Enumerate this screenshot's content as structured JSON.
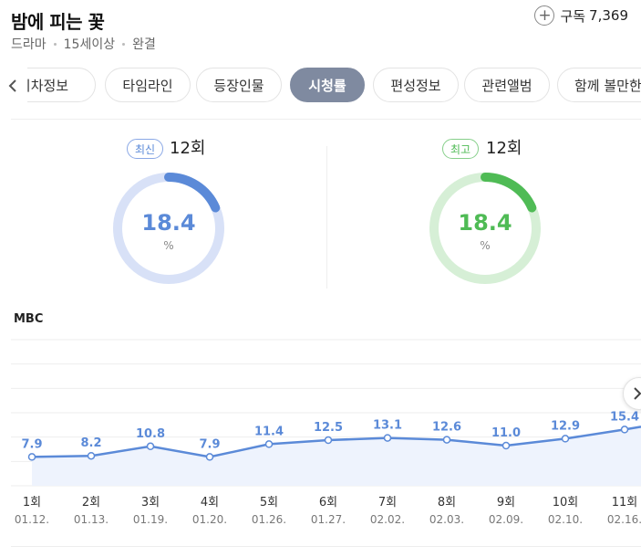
{
  "header": {
    "title": "밤에 피는 꽃",
    "meta": [
      "드라마",
      "15세이상",
      "완결"
    ],
    "subscribe_label": "구독",
    "subscribe_count": "7,369"
  },
  "tabs": [
    {
      "label": "회차정보",
      "active": false
    },
    {
      "label": "타임라인",
      "active": false
    },
    {
      "label": "등장인물",
      "active": false
    },
    {
      "label": "시청률",
      "active": true
    },
    {
      "label": "편성정보",
      "active": false
    },
    {
      "label": "관련앨범",
      "active": false
    },
    {
      "label": "함께 볼만한 작품",
      "active": false
    }
  ],
  "latest": {
    "badge": "최신",
    "episode": "12회",
    "value": "18.4",
    "unit": "%",
    "fraction": 0.184,
    "color": "#5b8ad8",
    "track": "#d8e1f7"
  },
  "best": {
    "badge": "최고",
    "episode": "12회",
    "value": "18.4",
    "unit": "%",
    "fraction": 0.184,
    "color": "#4fbb55",
    "track": "#d6efd6"
  },
  "channel": "MBC",
  "chart_data": {
    "type": "area",
    "series": [
      {
        "values": [
          7.9,
          8.2,
          10.8,
          7.9,
          11.4,
          12.5,
          13.1,
          12.6,
          11.0,
          12.9,
          15.4
        ]
      }
    ],
    "episodes": [
      "1회",
      "2회",
      "3회",
      "4회",
      "5회",
      "6회",
      "7회",
      "8회",
      "9회",
      "10회",
      "11회"
    ],
    "dates": [
      "01.12.",
      "01.13.",
      "01.19.",
      "01.20.",
      "01.26.",
      "01.27.",
      "02.02.",
      "02.03.",
      "02.09.",
      "02.10.",
      "02.16."
    ],
    "value_labels": [
      "7.9",
      "8.2",
      "10.8",
      "7.9",
      "11.4",
      "12.5",
      "13.1",
      "12.6",
      "11.0",
      "12.9",
      "15.4"
    ],
    "ylim": [
      0,
      40
    ],
    "grid": true,
    "line_color": "#5b8ad8",
    "fill_color": "#eef3fd"
  },
  "icons": {
    "prev": "chevron-left-icon",
    "next": "chevron-right-icon",
    "subscribe": "plus-circle-icon"
  }
}
